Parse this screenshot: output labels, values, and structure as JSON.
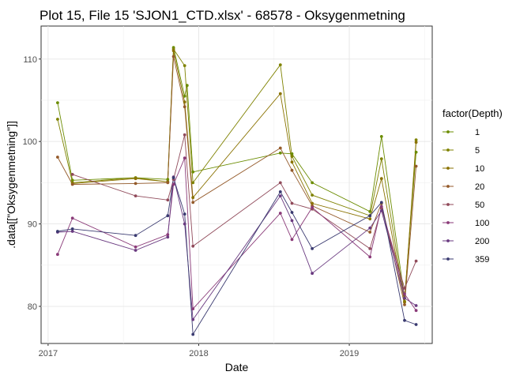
{
  "chart_data": {
    "type": "line",
    "title": "Plot 15, File 15 'SJON1_CTD.xlsx' - 68578  -  Oksygenmetning",
    "xlabel": "Date",
    "ylabel": ".data[[\"Oksygenmetning\"]]",
    "x_range": [
      "2016-12-15",
      "2019-07-21"
    ],
    "ylim": [
      75.5,
      114
    ],
    "x_ticks": [
      {
        "value": "2017-01-01",
        "label": "2017"
      },
      {
        "value": "2018-01-01",
        "label": "2018"
      },
      {
        "value": "2019-01-01",
        "label": "2019"
      }
    ],
    "y_ticks": [
      80,
      90,
      100,
      110
    ],
    "grid": true,
    "legend": {
      "title": "factor(Depth)",
      "position": "right"
    },
    "x": [
      "2017-01-24",
      "2017-03-01",
      "2017-08-01",
      "2017-10-18",
      "2017-11-01",
      "2017-11-28",
      "2017-12-04",
      "2017-12-18",
      "2017-12-20",
      "2018-07-18",
      "2018-08-15",
      "2018-10-03",
      "2019-02-20",
      "2019-03-20",
      "2019-05-15",
      "2019-06-12"
    ],
    "series": [
      {
        "name": "1",
        "color": "#6b8c00",
        "values": [
          104.7,
          95.3,
          95.6,
          95.4,
          111.4,
          105.5,
          106.8,
          96.3,
          null,
          98.6,
          98.5,
          95.0,
          91.5,
          100.6,
          81.0,
          98.7
        ]
      },
      {
        "name": "5",
        "color": "#7f8200",
        "values": [
          102.7,
          95.0,
          95.6,
          95.1,
          111.2,
          109.2,
          null,
          95.0,
          null,
          109.3,
          98.2,
          93.5,
          91.0,
          97.9,
          80.6,
          100.2
        ]
      },
      {
        "name": "10",
        "color": "#8a7200",
        "values": [
          null,
          94.9,
          95.5,
          95.1,
          111.0,
          104.8,
          null,
          93.2,
          null,
          105.8,
          97.5,
          92.5,
          90.6,
          95.5,
          80.5,
          99.9
        ]
      },
      {
        "name": "20",
        "color": "#945a2a",
        "values": [
          98.1,
          94.8,
          94.9,
          95.0,
          110.3,
          104.2,
          null,
          92.6,
          null,
          99.2,
          96.5,
          92.2,
          89.0,
          92.5,
          80.2,
          97.0
        ]
      },
      {
        "name": "50",
        "color": "#904a5a",
        "values": [
          null,
          96.0,
          93.4,
          92.9,
          95.4,
          100.8,
          null,
          87.3,
          null,
          95.0,
          92.5,
          91.8,
          87.0,
          91.9,
          82.2,
          85.5
        ]
      },
      {
        "name": "100",
        "color": "#8a3a78",
        "values": [
          86.3,
          90.7,
          87.2,
          88.7,
          94.8,
          98.0,
          null,
          79.7,
          null,
          91.3,
          88.1,
          92.0,
          86.0,
          92.1,
          81.5,
          79.5
        ]
      },
      {
        "name": "200",
        "color": "#6a3a80",
        "values": [
          89.0,
          89.1,
          86.8,
          88.4,
          95.7,
          90.0,
          null,
          78.4,
          null,
          93.4,
          90.4,
          84.0,
          89.5,
          91.6,
          81.0,
          80.1
        ]
      },
      {
        "name": "359",
        "color": "#3a3a70",
        "values": [
          89.1,
          89.4,
          88.6,
          91.0,
          95.6,
          91.2,
          null,
          76.6,
          null,
          93.9,
          91.4,
          87.0,
          91.0,
          92.6,
          78.3,
          77.8
        ]
      }
    ]
  }
}
